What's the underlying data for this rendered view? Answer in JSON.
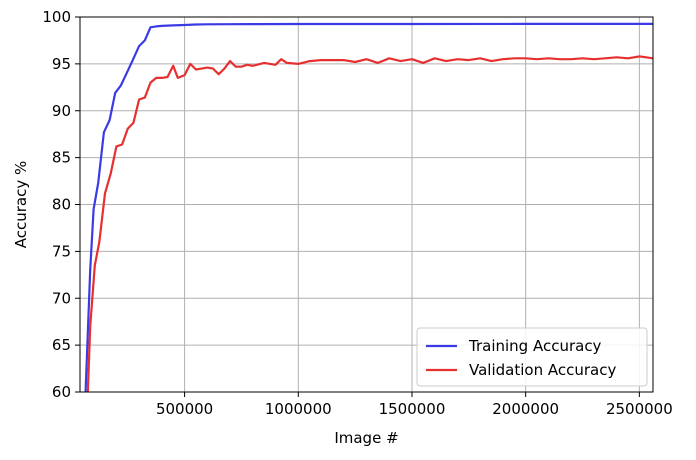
{
  "chart_data": {
    "type": "line",
    "xlabel": "Image #",
    "ylabel": "Accuracy %",
    "xlim": [
      40000,
      2560000
    ],
    "ylim": [
      60,
      100
    ],
    "x_ticks": [
      500000,
      1000000,
      1500000,
      2000000,
      2500000
    ],
    "x_tick_labels": [
      "500000",
      "1000000",
      "1500000",
      "2000000",
      "2500000"
    ],
    "y_ticks": [
      60,
      65,
      70,
      75,
      80,
      85,
      90,
      95,
      100
    ],
    "y_tick_labels": [
      "60",
      "65",
      "70",
      "75",
      "80",
      "85",
      "90",
      "95",
      "100"
    ],
    "grid": true,
    "legend_position": "bottom-right",
    "series": [
      {
        "name": "Training Accuracy",
        "color": "#3b3be6",
        "x": [
          60000,
          85000,
          100000,
          120000,
          145000,
          170000,
          195000,
          220000,
          245000,
          270000,
          300000,
          325000,
          350000,
          375000,
          400000,
          450000,
          500000,
          550000,
          600000,
          700000,
          800000,
          1000000,
          1500000,
          2000000,
          2500000,
          2560000
        ],
        "y": [
          57,
          73,
          79.5,
          82.3,
          87.7,
          89,
          91.9,
          92.7,
          94,
          95.3,
          96.9,
          97.5,
          98.9,
          99.0,
          99.05,
          99.1,
          99.15,
          99.2,
          99.22,
          99.23,
          99.24,
          99.25,
          99.25,
          99.26,
          99.26,
          99.26
        ]
      },
      {
        "name": "Validation Accuracy",
        "color": "#e63030",
        "x": [
          70000,
          85000,
          105000,
          125000,
          150000,
          175000,
          200000,
          225000,
          250000,
          275000,
          300000,
          325000,
          350000,
          375000,
          400000,
          425000,
          450000,
          470000,
          500000,
          525000,
          550000,
          575000,
          600000,
          625000,
          650000,
          675000,
          700000,
          725000,
          750000,
          775000,
          800000,
          850000,
          900000,
          925000,
          950000,
          1000000,
          1050000,
          1100000,
          1150000,
          1200000,
          1250000,
          1300000,
          1350000,
          1400000,
          1450000,
          1500000,
          1550000,
          1600000,
          1650000,
          1700000,
          1750000,
          1800000,
          1850000,
          1900000,
          1950000,
          2000000,
          2050000,
          2100000,
          2150000,
          2200000,
          2250000,
          2300000,
          2350000,
          2400000,
          2450000,
          2500000,
          2560000
        ],
        "y": [
          57,
          67,
          73.5,
          76,
          81.2,
          83.3,
          86.2,
          86.4,
          88.1,
          88.7,
          91.2,
          91.4,
          93,
          93.5,
          93.5,
          93.6,
          94.8,
          93.5,
          93.8,
          95.0,
          94.4,
          94.5,
          94.6,
          94.5,
          93.9,
          94.5,
          95.3,
          94.7,
          94.7,
          94.9,
          94.8,
          95.1,
          94.9,
          95.5,
          95.1,
          95.0,
          95.3,
          95.4,
          95.4,
          95.4,
          95.2,
          95.5,
          95.1,
          95.6,
          95.3,
          95.5,
          95.1,
          95.6,
          95.3,
          95.5,
          95.4,
          95.6,
          95.3,
          95.5,
          95.6,
          95.6,
          95.5,
          95.6,
          95.5,
          95.5,
          95.6,
          95.5,
          95.6,
          95.7,
          95.6,
          95.8,
          95.6
        ]
      }
    ]
  }
}
